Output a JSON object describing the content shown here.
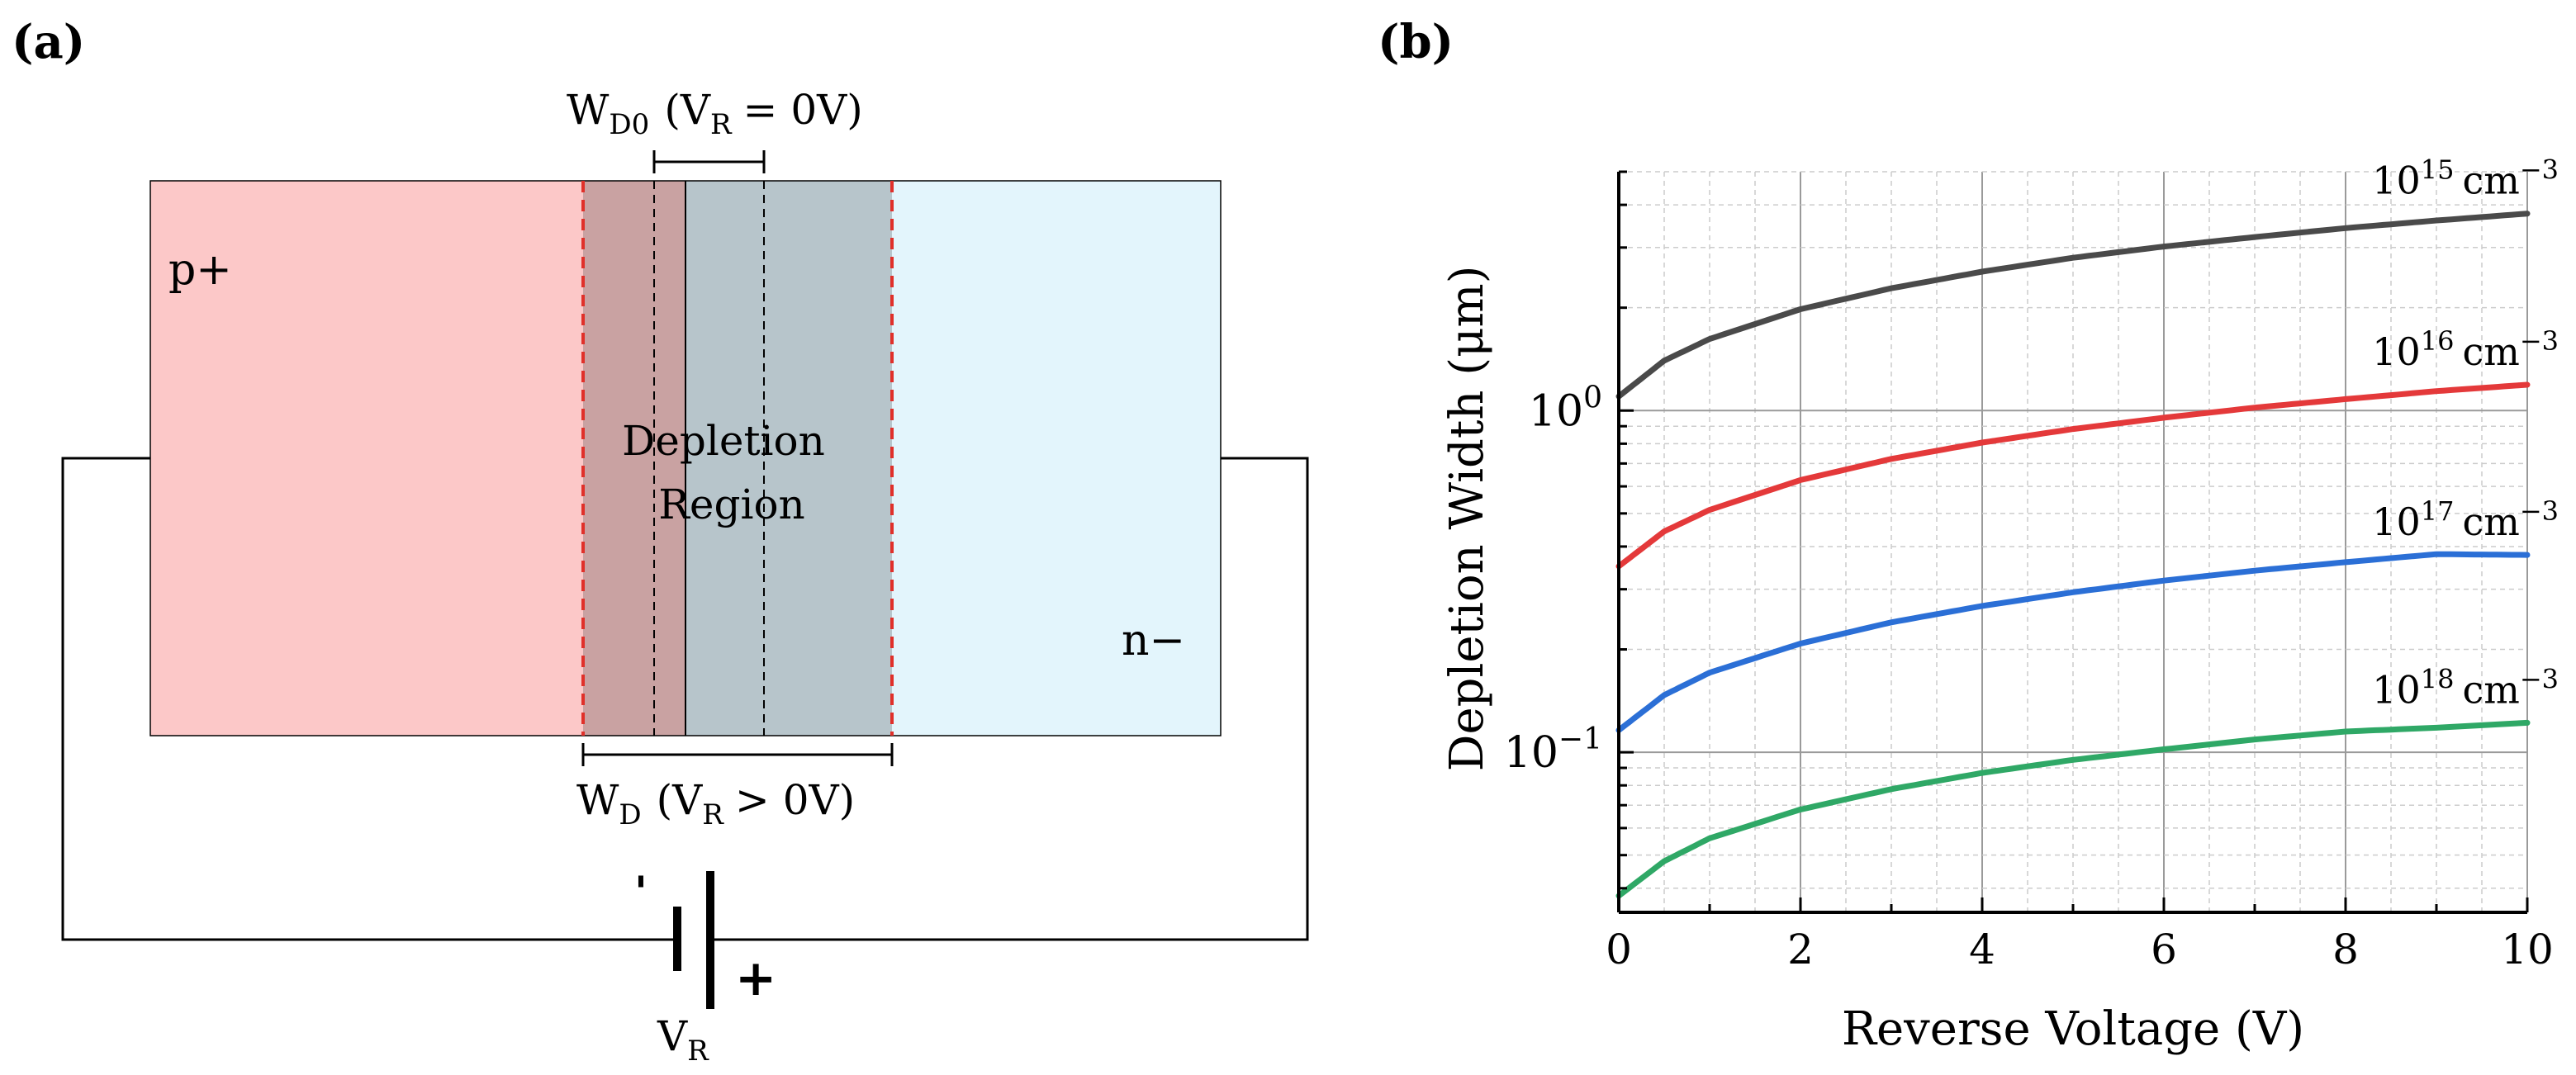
{
  "panel_a": {
    "label": "(a)",
    "p_region_label": "p+",
    "n_region_label": "n−",
    "depletion_label_line1": "Depletion",
    "depletion_label_line2": "Region",
    "wd0_label": {
      "main": "W",
      "sub": "D0",
      "rest": "(V",
      "rest_sub": "R",
      "tail": "= 0V)"
    },
    "wd_label": {
      "main": "W",
      "sub": "D",
      "rest": "(V",
      "rest_sub": "R",
      "tail": "> 0V)"
    },
    "battery_minus": "'",
    "battery_plus": "+",
    "vr_label": {
      "main": "V",
      "sub": "R"
    },
    "colors": {
      "p_region": "#fcc8c8",
      "n_region": "#e3f5fc",
      "depletion_p": "#c9a2a2",
      "depletion_n": "#b7c5cb",
      "edge_dash": "#e0302a"
    }
  },
  "panel_b": {
    "label": "(b)"
  },
  "chart_data": {
    "type": "line",
    "title": "",
    "xlabel": "Reverse Voltage (V)",
    "ylabel": "Depletion Width (μm)",
    "xlim": [
      0,
      10
    ],
    "ylim": [
      0.034,
      5.0
    ],
    "yscale": "log",
    "x_ticks": [
      "0",
      "2",
      "4",
      "6",
      "8",
      "10"
    ],
    "y_ticks": [
      {
        "base": "10",
        "exp": "0",
        "value": 1.0
      },
      {
        "base": "10",
        "exp": "−1",
        "value": 0.1
      }
    ],
    "grid": true,
    "x": [
      0,
      0.5,
      1,
      2,
      3,
      4,
      5,
      6,
      7,
      8,
      9,
      10
    ],
    "series": [
      {
        "name": "10^15 cm^-3",
        "label_base": "10",
        "label_exp": "15",
        "unit": "cm",
        "unit_exp": "−3",
        "color": "#4a4a4a",
        "values": [
          1.1,
          1.4,
          1.62,
          1.98,
          2.28,
          2.55,
          2.8,
          3.02,
          3.22,
          3.42,
          3.6,
          3.77
        ]
      },
      {
        "name": "10^16 cm^-3",
        "label_base": "10",
        "label_exp": "16",
        "unit": "cm",
        "unit_exp": "−3",
        "color": "#e4393a",
        "values": [
          0.35,
          0.443,
          0.512,
          0.626,
          0.722,
          0.806,
          0.883,
          0.953,
          1.02,
          1.08,
          1.14,
          1.19
        ]
      },
      {
        "name": "10^17 cm^-3",
        "label_base": "10",
        "label_exp": "17",
        "unit": "cm",
        "unit_exp": "−3",
        "color": "#2b6fd6",
        "values": [
          0.116,
          0.147,
          0.171,
          0.208,
          0.24,
          0.268,
          0.294,
          0.318,
          0.34,
          0.36,
          0.38,
          0.378
        ]
      },
      {
        "name": "10^18 cm^-3",
        "label_base": "10",
        "label_exp": "18",
        "unit": "cm",
        "unit_exp": "−3",
        "color": "#2fa866",
        "values": [
          0.038,
          0.048,
          0.056,
          0.068,
          0.078,
          0.087,
          0.095,
          0.102,
          0.109,
          0.115,
          0.118,
          0.122
        ]
      }
    ]
  }
}
